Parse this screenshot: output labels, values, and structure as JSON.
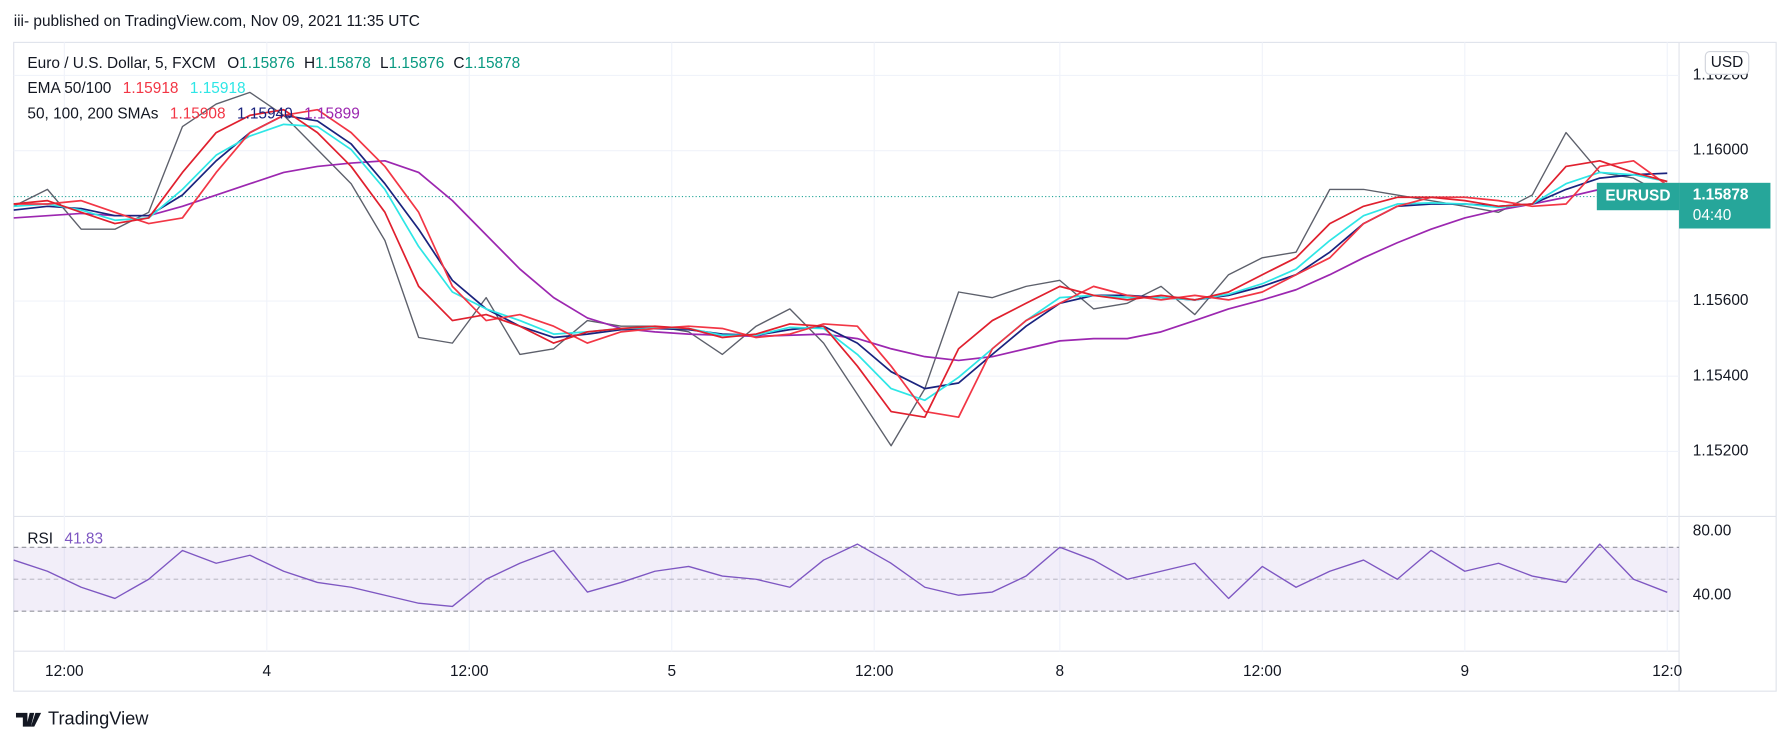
{
  "header": {
    "text": "iii- published on TradingView.com, Nov 09, 2021 11:35 UTC"
  },
  "footer": {
    "brand": "TradingView"
  },
  "chart_data": [
    {
      "type": "line",
      "symbol": "Euro / U.S. Dollar, 5, FXCM",
      "currency": "USD",
      "ohlc": [
        {
          "label": "O",
          "value": 1.15876
        },
        {
          "label": "H",
          "value": 1.15878
        },
        {
          "label": "L",
          "value": 1.15876
        },
        {
          "label": "C",
          "value": 1.15878
        }
      ],
      "legend": [
        {
          "label": "EMA 50/100",
          "readouts": [
            {
              "text": "1.15918",
              "color": "#f23645"
            },
            {
              "text": "1.15918",
              "color": "#2ee6e6"
            }
          ]
        },
        {
          "label": "50, 100, 200 SMAs",
          "readouts": [
            {
              "text": "1.15908",
              "color": "#f23645"
            },
            {
              "text": "1.15940",
              "color": "#1a237e"
            },
            {
              "text": "1.15899",
              "color": "#9c27b0"
            }
          ]
        }
      ],
      "last": {
        "symbol": "EURUSD",
        "value": 1.15878,
        "countdown": "04:40",
        "color": "#26a69a"
      },
      "x": [
        9,
        11,
        13,
        15,
        17,
        19,
        21,
        23,
        25,
        27,
        29,
        31,
        33,
        35,
        37,
        39,
        41,
        43,
        45,
        47,
        49,
        51,
        53,
        55,
        57,
        59,
        61,
        63,
        65,
        67,
        69,
        71,
        73,
        75,
        77,
        79,
        81,
        83,
        85,
        87,
        89,
        91,
        93,
        95,
        97,
        99,
        101,
        103,
        105,
        107
      ],
      "xlim": [
        9,
        107.7
      ],
      "xticks": [
        {
          "value": 12,
          "label": "12:00"
        },
        {
          "value": 24,
          "label": "4"
        },
        {
          "value": 36,
          "label": "12:00"
        },
        {
          "value": 48,
          "label": "5"
        },
        {
          "value": 60,
          "label": "12:00"
        },
        {
          "value": 71,
          "label": "8"
        },
        {
          "value": 83,
          "label": "12:00"
        },
        {
          "value": 95,
          "label": "9"
        },
        {
          "value": 107,
          "label": "12:0"
        }
      ],
      "ylim": [
        1.15027,
        1.16288
      ],
      "yticks": [
        {
          "value": 1.152,
          "label": "1.15200"
        },
        {
          "value": 1.154,
          "label": "1.15400"
        },
        {
          "value": 1.156,
          "label": "1.15600"
        },
        {
          "value": 1.16,
          "label": "1.16000"
        },
        {
          "value": 1.162,
          "label": "1.16200"
        }
      ],
      "grid": true,
      "series": [
        {
          "color": "#5d606b",
          "values": [
            1.15852,
            1.15897,
            1.15791,
            1.15791,
            1.15836,
            1.16064,
            1.16124,
            1.16155,
            1.16094,
            1.16003,
            1.15912,
            1.15761,
            1.15503,
            1.15488,
            1.15609,
            1.15458,
            1.15473,
            1.15548,
            1.15533,
            1.15533,
            1.15518,
            1.15458,
            1.15533,
            1.15579,
            1.15488,
            1.15352,
            1.15215,
            1.15367,
            1.15624,
            1.15609,
            1.15639,
            1.15655,
            1.15579,
            1.15594,
            1.15639,
            1.15564,
            1.1567,
            1.15715,
            1.1573,
            1.15897,
            1.15897,
            1.15882,
            1.15867,
            1.15852,
            1.15836,
            1.15882,
            1.16048,
            1.15942,
            1.15927,
            1.15878
          ]
        },
        {
          "color": "#9c27b0",
          "values": [
            1.15821,
            1.15827,
            1.15833,
            1.15827,
            1.15827,
            1.15852,
            1.15882,
            1.15912,
            1.15942,
            1.15958,
            1.15967,
            1.15973,
            1.15942,
            1.15867,
            1.15776,
            1.15685,
            1.15609,
            1.15555,
            1.15527,
            1.15518,
            1.15512,
            1.15509,
            1.15506,
            1.15509,
            1.15512,
            1.155,
            1.15473,
            1.15452,
            1.15442,
            1.15452,
            1.15473,
            1.15494,
            1.155,
            1.155,
            1.15518,
            1.15548,
            1.15579,
            1.15603,
            1.1563,
            1.1567,
            1.15715,
            1.15755,
            1.15791,
            1.15821,
            1.15842,
            1.15858,
            1.15876,
            1.15897,
            1.15912,
            1.15899
          ]
        },
        {
          "color": "#1a237e",
          "values": [
            1.15842,
            1.15852,
            1.15846,
            1.15827,
            1.15827,
            1.15882,
            1.15973,
            1.16048,
            1.16094,
            1.16079,
            1.16018,
            1.15912,
            1.15791,
            1.15655,
            1.15579,
            1.15533,
            1.15503,
            1.15512,
            1.15524,
            1.15527,
            1.15524,
            1.15512,
            1.15509,
            1.15524,
            1.15533,
            1.15488,
            1.15412,
            1.15367,
            1.15382,
            1.15458,
            1.15533,
            1.15594,
            1.15615,
            1.15615,
            1.15609,
            1.15603,
            1.15615,
            1.15639,
            1.1567,
            1.1573,
            1.15806,
            1.15852,
            1.15858,
            1.15858,
            1.15852,
            1.15858,
            1.15897,
            1.15927,
            1.15936,
            1.1594
          ]
        },
        {
          "color": "#2ee6e6",
          "values": [
            1.15852,
            1.15858,
            1.15842,
            1.15815,
            1.15821,
            1.15897,
            1.15988,
            1.16039,
            1.1607,
            1.16064,
            1.16003,
            1.15897,
            1.15745,
            1.15624,
            1.15579,
            1.15548,
            1.15512,
            1.15518,
            1.15527,
            1.1553,
            1.15527,
            1.15509,
            1.15509,
            1.1553,
            1.15527,
            1.15458,
            1.15367,
            1.15336,
            1.15397,
            1.15473,
            1.15548,
            1.15609,
            1.15615,
            1.15609,
            1.15609,
            1.15603,
            1.15618,
            1.15646,
            1.15685,
            1.15761,
            1.15827,
            1.15858,
            1.15861,
            1.15858,
            1.15849,
            1.15858,
            1.15912,
            1.15942,
            1.15936,
            1.15918
          ]
        },
        {
          "color": "#f23645",
          "values": [
            1.15858,
            1.15858,
            1.15867,
            1.15836,
            1.15806,
            1.15821,
            1.15942,
            1.16048,
            1.16094,
            1.16109,
            1.16048,
            1.15958,
            1.15836,
            1.15639,
            1.15548,
            1.15564,
            1.15533,
            1.15488,
            1.15518,
            1.15527,
            1.15533,
            1.15527,
            1.15503,
            1.15512,
            1.15539,
            1.15533,
            1.15427,
            1.15306,
            1.15291,
            1.15473,
            1.15548,
            1.15594,
            1.15639,
            1.15615,
            1.15603,
            1.15615,
            1.15603,
            1.15624,
            1.1567,
            1.15715,
            1.15806,
            1.15852,
            1.15876,
            1.15876,
            1.15867,
            1.15852,
            1.15858,
            1.15958,
            1.15973,
            1.15908
          ]
        },
        {
          "color": "#e0202e",
          "values": [
            1.15858,
            1.15867,
            1.15836,
            1.15806,
            1.15821,
            1.15942,
            1.16048,
            1.16094,
            1.16109,
            1.16048,
            1.15958,
            1.15836,
            1.15639,
            1.15548,
            1.15564,
            1.15533,
            1.15488,
            1.15518,
            1.15527,
            1.15533,
            1.15527,
            1.15503,
            1.15512,
            1.15539,
            1.15533,
            1.15427,
            1.15306,
            1.15291,
            1.15473,
            1.15548,
            1.15594,
            1.15639,
            1.15615,
            1.15603,
            1.15615,
            1.15603,
            1.15624,
            1.1567,
            1.15715,
            1.15806,
            1.15852,
            1.15876,
            1.15876,
            1.15867,
            1.15852,
            1.15858,
            1.15958,
            1.15973,
            1.15942,
            1.15918
          ]
        }
      ]
    },
    {
      "type": "line",
      "title": "RSI",
      "readout": "41.83",
      "color": "#7e57c2",
      "x": [
        9,
        11,
        13,
        15,
        17,
        19,
        21,
        23,
        25,
        27,
        29,
        31,
        33,
        35,
        37,
        39,
        41,
        43,
        45,
        47,
        49,
        51,
        53,
        55,
        57,
        59,
        61,
        63,
        65,
        67,
        69,
        71,
        73,
        75,
        77,
        79,
        81,
        83,
        85,
        87,
        89,
        91,
        93,
        95,
        97,
        99,
        101,
        103,
        105,
        107
      ],
      "xlim": [
        9,
        107.7
      ],
      "ylim": [
        5,
        89.3
      ],
      "yticks": [
        {
          "value": 40,
          "label": "40.00"
        },
        {
          "value": 80,
          "label": "80.00"
        }
      ],
      "levels": [
        70,
        50,
        30
      ],
      "series": [
        {
          "color": "#7e57c2",
          "values": [
            62,
            55,
            45,
            38,
            50,
            68,
            60,
            65,
            55,
            48,
            45,
            40,
            35,
            33,
            50,
            60,
            68,
            42,
            48,
            55,
            58,
            52,
            50,
            45,
            62,
            72,
            60,
            45,
            40,
            42,
            52,
            70,
            62,
            50,
            55,
            60,
            38,
            58,
            45,
            55,
            62,
            50,
            68,
            55,
            60,
            52,
            48,
            72,
            50,
            41.83
          ]
        }
      ]
    }
  ]
}
